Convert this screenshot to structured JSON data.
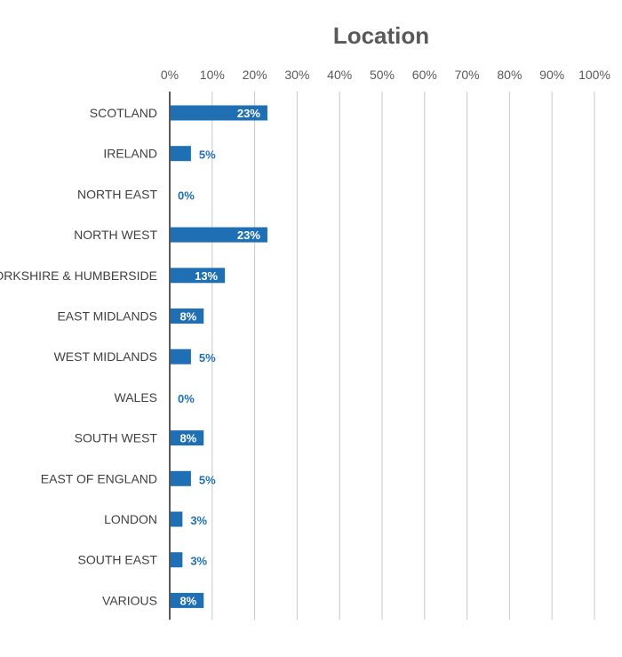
{
  "chart_data": {
    "type": "bar",
    "orientation": "horizontal",
    "title": "Location",
    "categories": [
      "SCOTLAND",
      "IRELAND",
      "NORTH EAST",
      "NORTH WEST",
      "YORKSHIRE & HUMBERSIDE",
      "EAST MIDLANDS",
      "WEST MIDLANDS",
      "WALES",
      "SOUTH WEST",
      "EAST OF ENGLAND",
      "LONDON",
      "SOUTH EAST",
      "VARIOUS"
    ],
    "values": [
      23,
      5,
      0,
      23,
      13,
      8,
      5,
      0,
      8,
      5,
      3,
      3,
      8
    ],
    "data_labels": [
      "23%",
      "5%",
      "0%",
      "23%",
      "13%",
      "8%",
      "5%",
      "0%",
      "8%",
      "5%",
      "3%",
      "3%",
      "8%"
    ],
    "xticks": [
      "0%",
      "10%",
      "20%",
      "30%",
      "40%",
      "50%",
      "60%",
      "70%",
      "80%",
      "90%",
      "100%"
    ],
    "xlim": [
      0,
      100
    ],
    "xaxis_position": "top",
    "grid": "vertical",
    "legend": "none",
    "colors": {
      "bar": "#1f6fb5",
      "label_inside": "#ffffff",
      "label_outside": "#1f6fb5",
      "title": "#595959",
      "grid": "#c8c8c8",
      "axis": "#595959"
    }
  }
}
